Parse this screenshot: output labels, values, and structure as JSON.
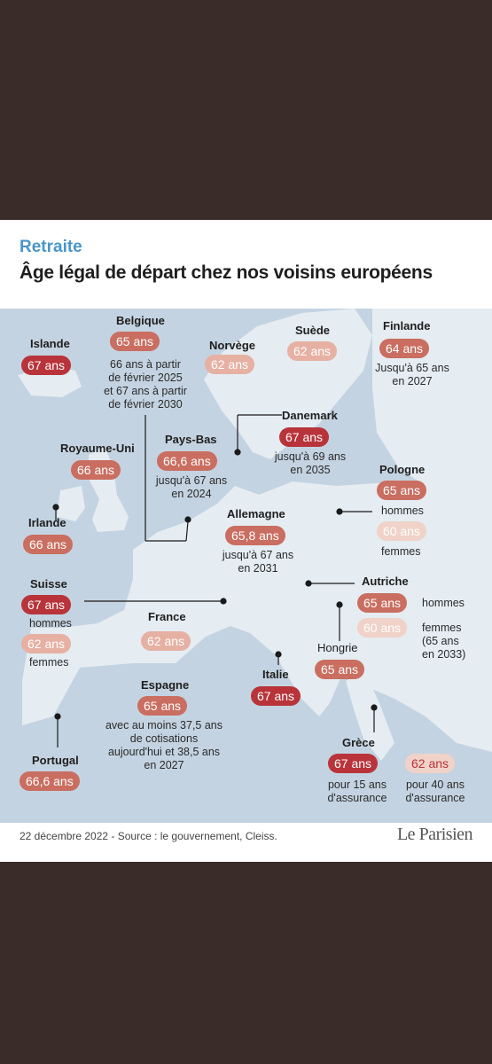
{
  "kicker": "Retraite",
  "title": "Âge légal de départ chez nos voisins européens",
  "countries": {
    "islande": {
      "name": "Islande",
      "age": "67 ans"
    },
    "belgique": {
      "name": "Belgique",
      "age": "65 ans",
      "note": [
        "66 ans à partir",
        "de février 2025",
        "et 67 ans à partir",
        "de février 2030"
      ]
    },
    "norvege": {
      "name": "Norvège",
      "age": "62 ans"
    },
    "suede": {
      "name": "Suède",
      "age": "62 ans"
    },
    "finlande": {
      "name": "Finlande",
      "age": "64 ans",
      "note": [
        "Jusqu'à 65 ans",
        "en 2027"
      ]
    },
    "danemark": {
      "name": "Danemark",
      "age": "67 ans",
      "note": [
        "jusqu'à 69 ans",
        "en 2035"
      ]
    },
    "royaume_uni": {
      "name": "Royaume-Uni",
      "age": "66 ans"
    },
    "pays_bas": {
      "name": "Pays-Bas",
      "age": "66,6 ans",
      "note": [
        "jusqu'à 67 ans",
        "en 2024"
      ]
    },
    "pologne": {
      "name": "Pologne",
      "age_men": "65 ans",
      "men": "hommes",
      "age_women": "60 ans",
      "women": "femmes"
    },
    "irlande": {
      "name": "Irlande",
      "age": "66 ans"
    },
    "allemagne": {
      "name": "Allemagne",
      "age": "65,8 ans",
      "note": [
        "jusqu'à 67 ans",
        "en 2031"
      ]
    },
    "suisse": {
      "name": "Suisse",
      "age_men": "67 ans",
      "men": "hommes",
      "age_women": "62 ans",
      "women": "femmes"
    },
    "autriche": {
      "name": "Autriche",
      "age_men": "65 ans",
      "men": "hommes",
      "age_women": "60 ans",
      "women": [
        "femmes",
        "(65 ans",
        "en 2033)"
      ]
    },
    "france": {
      "name": "France",
      "age": "62 ans"
    },
    "hongrie": {
      "name": "Hongrie",
      "age": "65 ans"
    },
    "italie": {
      "name": "Italie",
      "age": "67 ans"
    },
    "espagne": {
      "name": "Espagne",
      "age": "65 ans",
      "note": [
        "avec au moins 37,5 ans",
        "de cotisations",
        "aujourd'hui et 38,5 ans",
        "en 2027"
      ]
    },
    "grece": {
      "name": "Grèce",
      "age_a": "67 ans",
      "note_a": [
        "pour 15 ans",
        "d'assurance"
      ],
      "age_b": "62 ans",
      "note_b": [
        "pour 40 ans",
        "d'assurance"
      ]
    },
    "portugal": {
      "name": "Portugal",
      "age": "66,6 ans"
    }
  },
  "footer": "22 décembre 2022 - Source : le gouvernement, Cleiss.",
  "logo": "Le Parisien",
  "colors": {
    "kicker": "#4a95c8",
    "dark": "#b8343a",
    "mid": "#c96e60",
    "light": "#e6b0a3",
    "pale": "#f0d2c8",
    "sea": "#c4d3e1",
    "land": "#e5ecf2"
  }
}
